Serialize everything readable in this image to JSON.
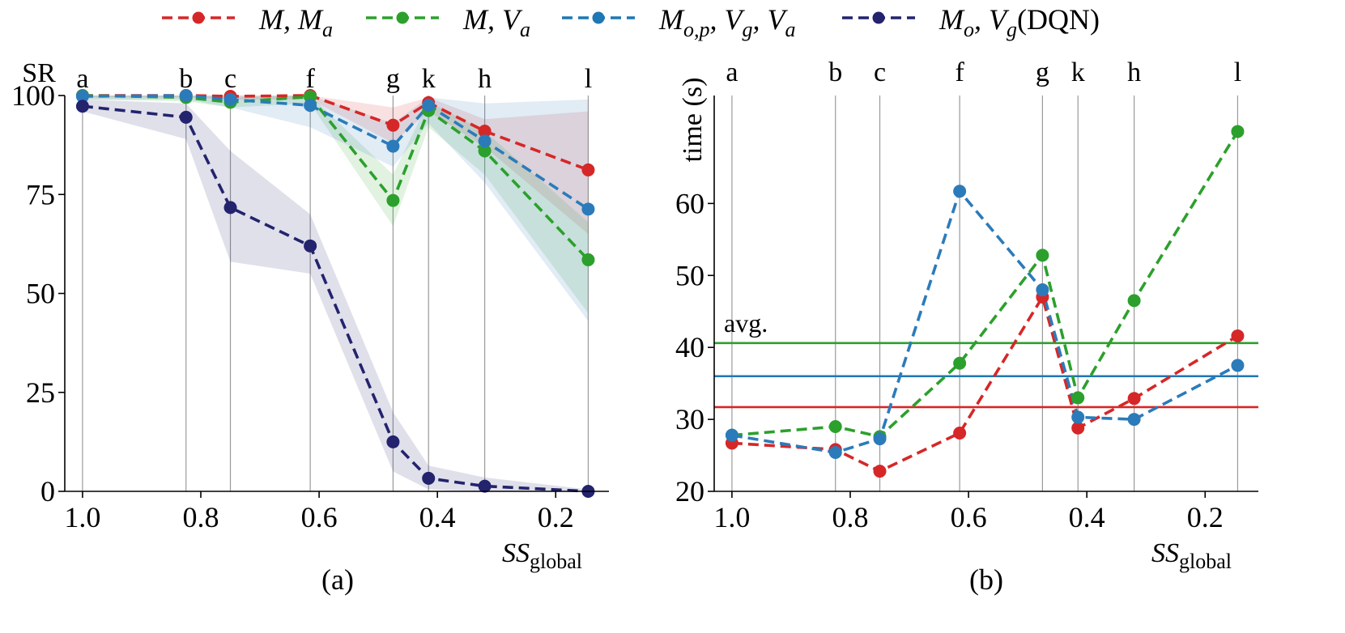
{
  "legend": [
    {
      "label": "M, M",
      "sub": "a",
      "color": "#d62728"
    },
    {
      "label": "M, V",
      "sub": "a",
      "color": "#2ca02c"
    },
    {
      "label": "M",
      "sub": "o,p",
      "mid": ", V",
      "sub2": "g",
      "tail": ", V",
      "sub3": "a",
      "color": "#1f77b4"
    },
    {
      "label": "M",
      "sub": "o",
      "mid": ", V",
      "sub2": "g",
      "tail": "(DQN)",
      "color": "#23236e"
    }
  ],
  "chart_data": [
    {
      "type": "line",
      "ylabel": "SR",
      "caption": "(a)",
      "xlabel_main": "SS",
      "xlabel_sub": "global",
      "xlim": [
        1.03,
        0.11
      ],
      "ylim": [
        0,
        100
      ],
      "xticks": [
        "1.0",
        "0.8",
        "0.6",
        "0.4",
        "0.2"
      ],
      "yticks": [
        "0",
        "25",
        "50",
        "75",
        "100"
      ],
      "vlines": [
        {
          "x": 1.0,
          "label": "a"
        },
        {
          "x": 0.825,
          "label": "b"
        },
        {
          "x": 0.75,
          "label": "c"
        },
        {
          "x": 0.615,
          "label": "f"
        },
        {
          "x": 0.475,
          "label": "g"
        },
        {
          "x": 0.415,
          "label": "k"
        },
        {
          "x": 0.32,
          "label": "h"
        },
        {
          "x": 0.145,
          "label": "l"
        }
      ],
      "series": [
        {
          "name": "M, M_a",
          "color": "#d62728",
          "values": [
            100,
            100,
            99.8,
            100,
            92.5,
            98.2,
            91,
            81.2
          ],
          "band_low": [
            99.5,
            99.5,
            99,
            99,
            88,
            96,
            87,
            65
          ],
          "band_high": [
            100,
            100,
            100,
            100,
            97,
            99.5,
            94,
            96
          ]
        },
        {
          "name": "M, V_a",
          "color": "#2ca02c",
          "values": [
            100,
            99.5,
            98.3,
            99.7,
            73.5,
            96.2,
            86,
            58.5
          ],
          "band_low": [
            99,
            98.5,
            97,
            98,
            67,
            92,
            80,
            45
          ],
          "band_high": [
            100,
            100,
            99.5,
            100,
            80,
            98.5,
            91,
            68
          ]
        },
        {
          "name": "M_op, V_g, V_a",
          "color": "#2b7bba",
          "values": [
            99.8,
            100,
            99,
            97.5,
            87.2,
            97.5,
            88.5,
            71.3
          ],
          "band_low": [
            99,
            99,
            97,
            92,
            82,
            93,
            78,
            43
          ],
          "band_high": [
            100,
            100,
            100,
            100,
            93,
            99.5,
            98,
            99
          ]
        },
        {
          "name": "M_o, V_g (DQN)",
          "color": "#23236e",
          "values": [
            97.3,
            94.5,
            71.7,
            62,
            12.5,
            3.3,
            1.3,
            0
          ],
          "band_low": [
            96,
            89,
            58,
            55,
            5,
            0.5,
            0,
            0
          ],
          "band_high": [
            99,
            98,
            86,
            70,
            20,
            6.5,
            3.5,
            0.5
          ]
        }
      ]
    },
    {
      "type": "line",
      "ylabel": "time (s)",
      "caption": "(b)",
      "xlabel_main": "SS",
      "xlabel_sub": "global",
      "annotation": "avg.",
      "xlim": [
        1.03,
        0.11
      ],
      "ylim": [
        20,
        75
      ],
      "xticks": [
        "1.0",
        "0.8",
        "0.6",
        "0.4",
        "0.2"
      ],
      "yticks": [
        "20",
        "30",
        "40",
        "50",
        "60"
      ],
      "vlines": [
        {
          "x": 1.0,
          "label": "a"
        },
        {
          "x": 0.825,
          "label": "b"
        },
        {
          "x": 0.75,
          "label": "c"
        },
        {
          "x": 0.615,
          "label": "f"
        },
        {
          "x": 0.475,
          "label": "g"
        },
        {
          "x": 0.415,
          "label": "k"
        },
        {
          "x": 0.32,
          "label": "h"
        },
        {
          "x": 0.145,
          "label": "l"
        }
      ],
      "averages": [
        {
          "color": "#2ca02c",
          "value": 40.6
        },
        {
          "color": "#1f77b4",
          "value": 36.0
        },
        {
          "color": "#d62728",
          "value": 31.7
        }
      ],
      "series": [
        {
          "name": "M, M_a",
          "color": "#d62728",
          "values": [
            26.7,
            25.8,
            22.8,
            28.1,
            47.0,
            28.8,
            32.9,
            41.6
          ]
        },
        {
          "name": "M, V_a",
          "color": "#2ca02c",
          "values": [
            27.8,
            29.0,
            27.6,
            37.8,
            52.8,
            33.0,
            46.5,
            70.0
          ]
        },
        {
          "name": "M_op, V_g, V_a",
          "color": "#2b7bba",
          "values": [
            27.8,
            25.4,
            27.3,
            61.7,
            48.0,
            30.3,
            30.0,
            37.5
          ]
        }
      ]
    }
  ]
}
